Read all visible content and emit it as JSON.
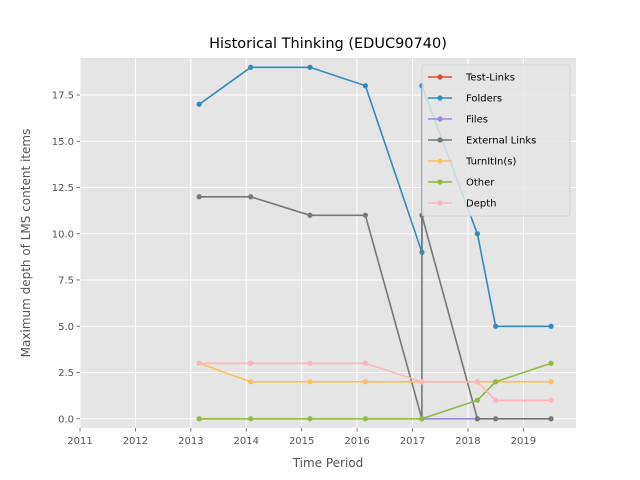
{
  "chart_data": {
    "type": "line",
    "title": "Historical Thinking (EDUC90740)",
    "xlabel": "Time Period",
    "ylabel": "Maximum depth of LMS content items",
    "xlim": [
      2011.0,
      2019.95
    ],
    "ylim": [
      -0.5,
      19.5
    ],
    "xticks": [
      2011,
      2012,
      2013,
      2014,
      2015,
      2016,
      2017,
      2018,
      2019
    ],
    "xtick_labels": [
      "2011",
      "2012",
      "2013",
      "2014",
      "2015",
      "2016",
      "2017",
      "2018",
      "2019"
    ],
    "yticks": [
      0.0,
      2.5,
      5.0,
      7.5,
      10.0,
      12.5,
      15.0,
      17.5
    ],
    "ytick_labels": [
      "0.0",
      "2.5",
      "5.0",
      "7.5",
      "10.0",
      "12.5",
      "15.0",
      "17.5"
    ],
    "grid": true,
    "legend_position": "top-right",
    "series": [
      {
        "name": "Test-Links",
        "color": "#e24a33",
        "x": [],
        "y": []
      },
      {
        "name": "Folders",
        "color": "#348abd",
        "x": [
          2013.15,
          2014.08,
          2015.15,
          2016.15,
          2017.17,
          2017.17,
          2018.17,
          2018.5,
          2019.5
        ],
        "y": [
          17,
          19,
          19,
          18,
          9,
          18,
          10,
          5,
          5
        ]
      },
      {
        "name": "Files",
        "color": "#988ed5",
        "x": [
          2017.17,
          2018.17
        ],
        "y": [
          0,
          0
        ]
      },
      {
        "name": "External Links",
        "color": "#777777",
        "x": [
          2013.15,
          2014.08,
          2015.15,
          2016.15,
          2017.17,
          2017.17,
          2018.17,
          2018.5,
          2019.5
        ],
        "y": [
          12,
          12,
          11,
          11,
          0,
          11,
          0,
          0,
          0
        ]
      },
      {
        "name": "TurnItIn(s)",
        "color": "#fbc15e",
        "x": [
          2013.15,
          2014.08,
          2015.15,
          2016.15,
          2017.17,
          2018.17,
          2018.5,
          2019.5
        ],
        "y": [
          3,
          2,
          2,
          2,
          2,
          2,
          2,
          2
        ]
      },
      {
        "name": "Other",
        "color": "#8eba42",
        "x": [
          2013.15,
          2014.08,
          2015.15,
          2016.15,
          2017.17,
          2018.17,
          2018.5,
          2019.5
        ],
        "y": [
          0,
          0,
          0,
          0,
          0,
          1,
          2,
          3
        ]
      },
      {
        "name": "Depth",
        "color": "#ffb5b8",
        "x": [
          2013.15,
          2014.08,
          2015.15,
          2016.15,
          2017.17,
          2018.17,
          2018.5,
          2019.5
        ],
        "y": [
          3,
          3,
          3,
          3,
          2,
          2,
          1,
          1
        ]
      }
    ]
  }
}
